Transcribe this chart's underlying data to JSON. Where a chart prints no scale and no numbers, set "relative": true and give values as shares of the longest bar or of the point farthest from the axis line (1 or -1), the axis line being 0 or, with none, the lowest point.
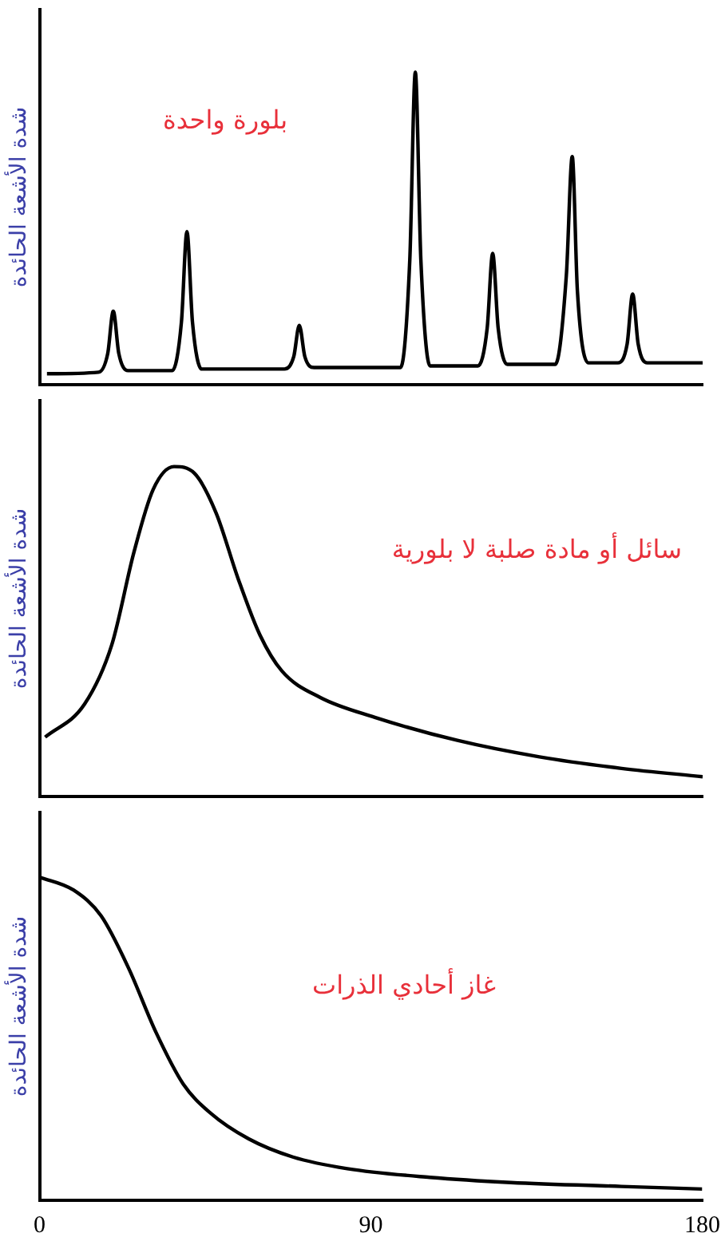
{
  "chart_data": [
    {
      "type": "line",
      "ylabel": "شدة الأشعة الحائدة",
      "annotations": [
        "بلورة واحدة"
      ],
      "relative": true,
      "xlim": [
        0,
        180
      ],
      "xticks": [
        0,
        90,
        180
      ],
      "tick_labels": false,
      "grid": false,
      "legend": false,
      "marker": "none",
      "x": [
        2,
        16,
        18.5,
        20,
        21.5,
        24,
        36,
        38.5,
        40,
        41.5,
        44,
        66.5,
        69,
        70.5,
        72,
        74.5,
        98,
        100.5,
        102,
        103.5,
        106,
        119,
        121.5,
        123,
        124.5,
        127,
        140,
        143,
        144.6,
        146,
        149,
        157,
        159.5,
        161,
        162.5,
        165,
        180
      ],
      "series": [
        {
          "color": "#000000",
          "values": [
            0.035,
            0.04,
            0.1,
            0.235,
            0.1,
            0.045,
            0.045,
            0.2,
            0.49,
            0.2,
            0.05,
            0.05,
            0.09,
            0.19,
            0.09,
            0.055,
            0.055,
            0.4,
            1.0,
            0.4,
            0.06,
            0.06,
            0.18,
            0.42,
            0.18,
            0.065,
            0.065,
            0.35,
            0.73,
            0.3,
            0.07,
            0.07,
            0.13,
            0.29,
            0.13,
            0.07,
            0.07
          ]
        }
      ]
    },
    {
      "type": "line",
      "ylabel": "شدة الأشعة الحائدة",
      "annotations": [
        "سائل أو مادة صلبة لا بلورية"
      ],
      "relative": true,
      "xlim": [
        0,
        180
      ],
      "xticks": [
        0,
        90,
        180
      ],
      "tick_labels": false,
      "grid": false,
      "legend": false,
      "marker": "none",
      "x": [
        1.5,
        12.2,
        19.6,
        25.6,
        30.8,
        36.5,
        42,
        47.9,
        53.9,
        59.8,
        65.8,
        76.2,
        91,
        113.4,
        135.7,
        158,
        180
      ],
      "series": [
        {
          "color": "#000000",
          "values": [
            0.18,
            0.28,
            0.46,
            0.74,
            0.93,
            1.0,
            0.98,
            0.86,
            0.66,
            0.49,
            0.38,
            0.3,
            0.24,
            0.17,
            0.12,
            0.085,
            0.06
          ]
        }
      ]
    },
    {
      "type": "line",
      "ylabel": "شدة الأشعة الحائدة",
      "annotations": [
        "غاز أحادي الذرات"
      ],
      "relative": true,
      "xlim": [
        0,
        180
      ],
      "xticks": [
        0,
        90,
        180
      ],
      "grid": false,
      "legend": false,
      "marker": "none",
      "x": [
        0,
        9.2,
        16.7,
        24.1,
        31.6,
        39,
        46.4,
        56.8,
        68.8,
        83.6,
        106,
        128,
        158,
        180
      ],
      "series": [
        {
          "color": "#000000",
          "values": [
            1.0,
            0.96,
            0.88,
            0.72,
            0.52,
            0.36,
            0.27,
            0.19,
            0.134,
            0.098,
            0.071,
            0.055,
            0.043,
            0.035
          ]
        }
      ]
    }
  ]
}
